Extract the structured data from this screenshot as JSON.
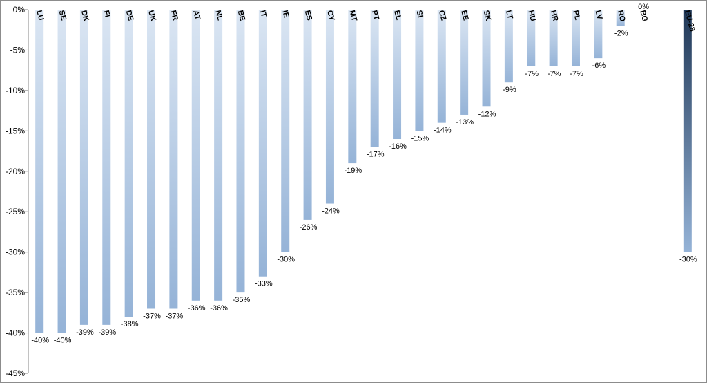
{
  "chart_data": {
    "type": "bar",
    "orientation": "vertical",
    "categories": [
      "LU",
      "SE",
      "DK",
      "FI",
      "DE",
      "UK",
      "FR",
      "AT",
      "NL",
      "BE",
      "IT",
      "IE",
      "ES",
      "CY",
      "MT",
      "PT",
      "EL",
      "SI",
      "CZ",
      "EE",
      "SK",
      "LT",
      "HU",
      "HR",
      "PL",
      "LV",
      "RO",
      "BG",
      "",
      "EU-28"
    ],
    "values": [
      -40,
      -40,
      -39,
      -39,
      -38,
      -37,
      -37,
      -36,
      -36,
      -35,
      -33,
      -30,
      -26,
      -24,
      -19,
      -17,
      -16,
      -15,
      -14,
      -13,
      -12,
      -9,
      -7,
      -7,
      -7,
      -6,
      -2,
      0,
      null,
      -30
    ],
    "data_labels": [
      "-40%",
      "-40%",
      "-39%",
      "-39%",
      "-38%",
      "-37%",
      "-37%",
      "-36%",
      "-36%",
      "-35%",
      "-33%",
      "-30%",
      "-26%",
      "-24%",
      "-19%",
      "-17%",
      "-16%",
      "-15%",
      "-14%",
      "-13%",
      "-12%",
      "-9%",
      "-7%",
      "-7%",
      "-7%",
      "-6%",
      "-2%",
      "0%",
      "",
      "-30%"
    ],
    "ylim": [
      -45,
      0
    ],
    "yticks": [
      "0%",
      "-5%",
      "-10%",
      "-15%",
      "-20%",
      "-25%",
      "-30%",
      "-35%",
      "-40%",
      "-45%"
    ],
    "ytick_values": [
      0,
      -5,
      -10,
      -15,
      -20,
      -25,
      -30,
      -35,
      -40,
      -45
    ],
    "title": "",
    "xlabel": "",
    "ylabel": "",
    "grid": false,
    "legend": "none",
    "colors": {
      "bar_top": "#dbe6f3",
      "bar_bottom": "#95b3d7",
      "highlight_top": "#1f3756",
      "highlight_bottom": "#95b3d7",
      "axis": "#868686"
    }
  }
}
